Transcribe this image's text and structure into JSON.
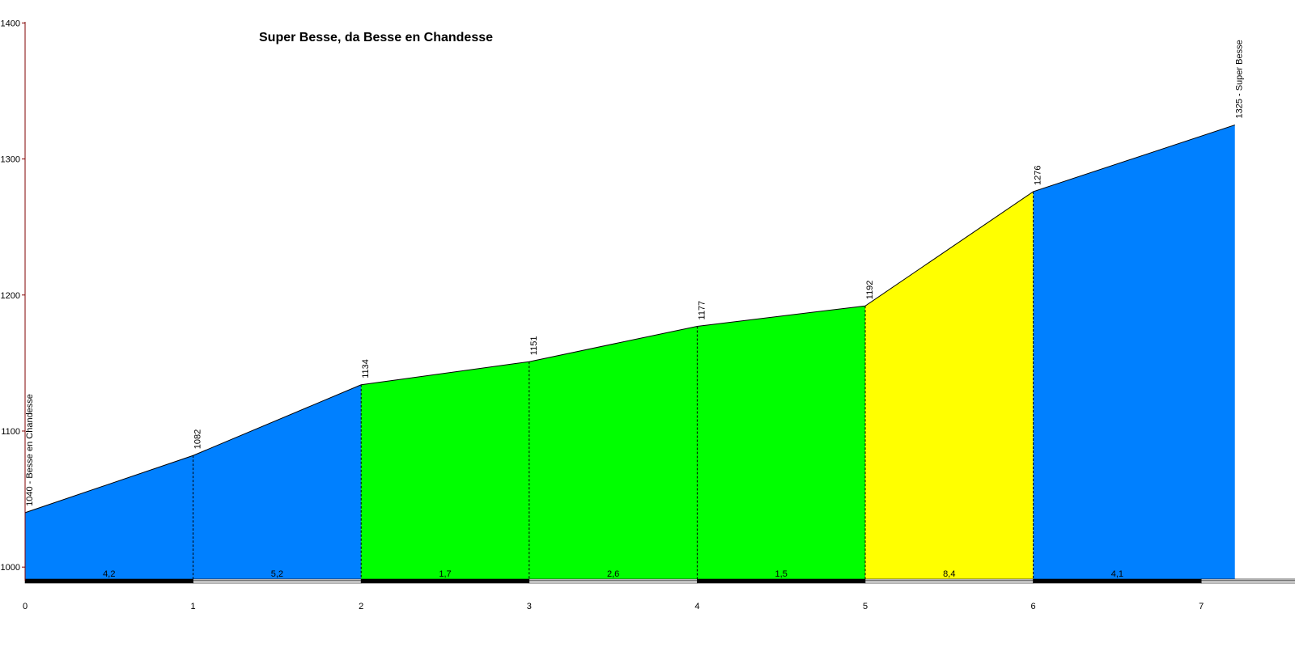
{
  "chart_data": {
    "type": "area",
    "title": "Super Besse, da Besse en Chandesse",
    "xlabel": "",
    "ylabel": "",
    "xlim": [
      0,
      7.6
    ],
    "ylim": [
      990,
      1400
    ],
    "x_ticks": [
      0,
      1,
      2,
      3,
      4,
      5,
      6,
      7
    ],
    "y_ticks": [
      1000,
      1100,
      1200,
      1300,
      1400
    ],
    "grid": false,
    "points": [
      {
        "x": 0,
        "y": 1040,
        "label": "1040 - Besse en Chandesse"
      },
      {
        "x": 1,
        "y": 1082,
        "label": "1082"
      },
      {
        "x": 2,
        "y": 1134,
        "label": "1134"
      },
      {
        "x": 3,
        "y": 1151,
        "label": "1151"
      },
      {
        "x": 4,
        "y": 1177,
        "label": "1177"
      },
      {
        "x": 5,
        "y": 1192,
        "label": "1192"
      },
      {
        "x": 6,
        "y": 1276,
        "label": "1276"
      },
      {
        "x": 7.2,
        "y": 1325,
        "label": "1325 - Super Besse"
      }
    ],
    "segments": [
      {
        "x0": 0,
        "x1": 1,
        "gradient": "4,2",
        "color": "#0080ff"
      },
      {
        "x0": 1,
        "x1": 2,
        "gradient": "5,2",
        "color": "#0080ff"
      },
      {
        "x0": 2,
        "x1": 3,
        "gradient": "1,7",
        "color": "#00ff00"
      },
      {
        "x0": 3,
        "x1": 4,
        "gradient": "2,6",
        "color": "#00ff00"
      },
      {
        "x0": 4,
        "x1": 5,
        "gradient": "1,5",
        "color": "#00ff00"
      },
      {
        "x0": 5,
        "x1": 6,
        "gradient": "8,4",
        "color": "#ffff00"
      },
      {
        "x0": 6,
        "x1": 7.2,
        "gradient": "4,1",
        "color": "#0080ff"
      }
    ],
    "colors": {
      "axis": "#800000",
      "line": "#000000",
      "dashed": "#000000"
    }
  }
}
